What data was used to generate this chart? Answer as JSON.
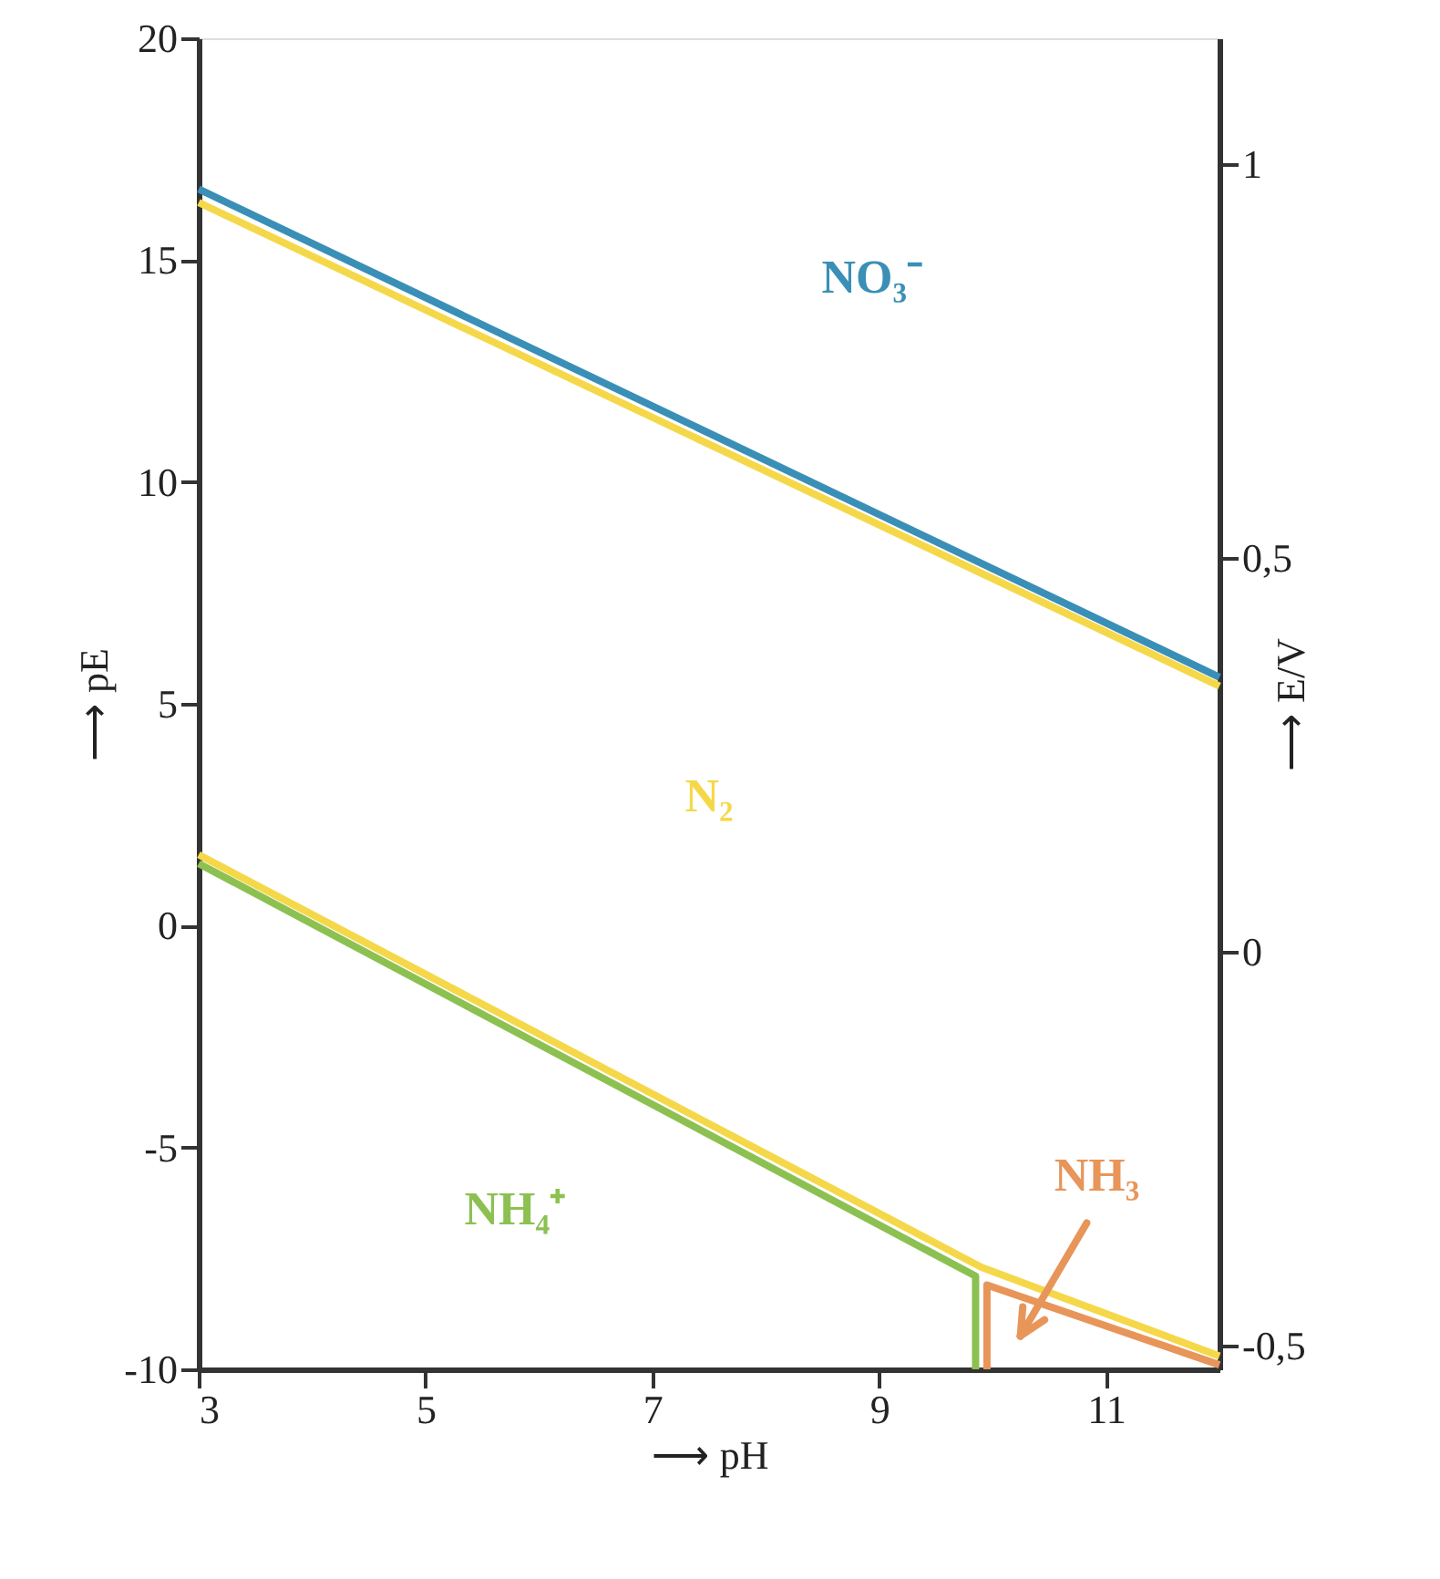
{
  "chart_data": {
    "type": "line",
    "xlabel": "⟶ pH",
    "ylabel": "⟶ pE",
    "y2label": "⟶ E/V",
    "xlim": [
      3,
      12
    ],
    "xticks": [
      3,
      5,
      7,
      9,
      11
    ],
    "ylim": [
      -10,
      20
    ],
    "yticks": [
      -10,
      -5,
      0,
      5,
      10,
      15,
      20
    ],
    "y2lim": [
      -0.53,
      1.16
    ],
    "y2ticks": [
      {
        "value": 1,
        "label": "1"
      },
      {
        "value": 0.5,
        "label": "0,5"
      },
      {
        "value": 0,
        "label": "0"
      },
      {
        "value": -0.5,
        "label": "-0,5"
      }
    ],
    "grid": false,
    "line_style": "solid",
    "marker": "none",
    "series": [
      {
        "color": "#3a8fb7",
        "x": [
          3,
          12
        ],
        "values": [
          16.6,
          5.6
        ]
      },
      {
        "color": "#f5d84a",
        "x": [
          3,
          12
        ],
        "values": [
          16.3,
          5.4
        ]
      },
      {
        "color": "#8cc152",
        "x": [
          3,
          9.85,
          9.85
        ],
        "values": [
          1.4,
          -7.9,
          -10
        ]
      },
      {
        "color": "#e8955a",
        "x": [
          9.95,
          9.95,
          12
        ],
        "values": [
          -10,
          -8.1,
          -9.9
        ]
      },
      {
        "color": "#f5d84a",
        "x": [
          3,
          9.9,
          12
        ],
        "values": [
          1.6,
          -7.7,
          -9.7
        ]
      }
    ],
    "annotations": [
      "NO₃⁻",
      "N₂",
      "NH₄⁺",
      "NH₃"
    ]
  }
}
